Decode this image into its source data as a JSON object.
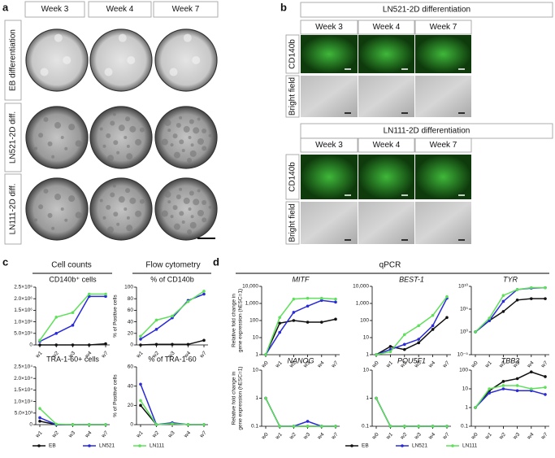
{
  "panels": {
    "a": {
      "label": "a",
      "columns": [
        "Week 3",
        "Week 4",
        "Week 7"
      ],
      "rows": [
        "EB differentiation",
        "LN521-2D diff.",
        "LN111-2D diff."
      ]
    },
    "b": {
      "label": "b",
      "blocks": [
        {
          "title": "LN521-2D differentiation",
          "columns": [
            "Week 3",
            "Week 4",
            "Week 7"
          ],
          "rows": [
            "CD140b",
            "Bright field"
          ]
        },
        {
          "title": "LN111-2D differentiation",
          "columns": [
            "Week 3",
            "Week 4",
            "Week 7"
          ],
          "rows": [
            "CD140b",
            "Bright field"
          ]
        }
      ]
    },
    "c": {
      "label": "c",
      "headers": [
        "Cell counts",
        "Flow cytometry"
      ]
    },
    "d": {
      "label": "d",
      "header": "qPCR"
    }
  },
  "chart_data": [
    {
      "type": "line",
      "title": "CD140b⁺ cells",
      "categories": [
        "w1",
        "w2",
        "w3",
        "w4",
        "w7"
      ],
      "ylim": [
        0,
        2500000
      ],
      "yticks": [
        0,
        {
          "value": 500000,
          "label": "5.0×10⁵"
        },
        {
          "value": 1000000,
          "label": "1.0×10⁶"
        },
        {
          "value": 1500000,
          "label": "1.5×10⁶"
        },
        {
          "value": 2000000,
          "label": "2.0×10⁶"
        },
        {
          "value": 2500000,
          "label": "2.5×10⁶"
        }
      ],
      "series": [
        {
          "name": "EB",
          "color": "#111111",
          "values": [
            0,
            0,
            0,
            0,
            50000
          ]
        },
        {
          "name": "LN521",
          "color": "#2a2ad8",
          "values": [
            150000,
            500000,
            850000,
            2100000,
            2100000
          ]
        },
        {
          "name": "LN111",
          "color": "#5fe05a",
          "values": [
            200000,
            1200000,
            1400000,
            2200000,
            2200000
          ]
        }
      ]
    },
    {
      "type": "line",
      "title": "% of CD140b",
      "ylabel": "% of Positive cells",
      "categories": [
        "w1",
        "w2",
        "w3",
        "w4",
        "w7"
      ],
      "ylim": [
        0,
        100
      ],
      "yticks": [
        0,
        20,
        40,
        60,
        80,
        100
      ],
      "series": [
        {
          "name": "EB",
          "color": "#111111",
          "values": [
            0,
            1,
            1,
            1,
            8
          ]
        },
        {
          "name": "LN521",
          "color": "#2a2ad8",
          "values": [
            10,
            27,
            47,
            77,
            88
          ]
        },
        {
          "name": "LN111",
          "color": "#5fe05a",
          "values": [
            15,
            43,
            50,
            75,
            93
          ]
        }
      ]
    },
    {
      "type": "line",
      "title": "TRA-1-60+ cells",
      "categories": [
        "w1",
        "w2",
        "w3",
        "w4",
        "w7"
      ],
      "ylim": [
        0,
        25000
      ],
      "yticks": [
        0,
        {
          "value": 5000,
          "label": "5.0×10³"
        },
        {
          "value": 10000,
          "label": "1.0×10⁴"
        },
        {
          "value": 15000,
          "label": "1.5×10⁴"
        },
        {
          "value": 20000,
          "label": "2.0×10⁴"
        },
        {
          "value": 25000,
          "label": "2.5×10⁴"
        }
      ],
      "series": [
        {
          "name": "EB",
          "color": "#111111",
          "values": [
            1500,
            0,
            0,
            0,
            0
          ]
        },
        {
          "name": "LN521",
          "color": "#2a2ad8",
          "values": [
            3000,
            0,
            0,
            0,
            0
          ]
        },
        {
          "name": "LN111",
          "color": "#5fe05a",
          "values": [
            7000,
            200,
            0,
            0,
            0
          ]
        }
      ]
    },
    {
      "type": "line",
      "title": "% of TRA-1-60",
      "ylabel": "% of Positive cells",
      "categories": [
        "w1",
        "w2",
        "w3",
        "w4",
        "w7"
      ],
      "ylim": [
        0,
        60
      ],
      "yticks": [
        0,
        20,
        40,
        60
      ],
      "series": [
        {
          "name": "EB",
          "color": "#111111",
          "values": [
            20,
            0,
            1,
            0,
            0
          ]
        },
        {
          "name": "LN521",
          "color": "#2a2ad8",
          "values": [
            42,
            0,
            2,
            0,
            0
          ]
        },
        {
          "name": "LN111",
          "color": "#5fe05a",
          "values": [
            25,
            0,
            1,
            0,
            0
          ]
        }
      ]
    },
    {
      "type": "line",
      "title": "MITF",
      "title_italic": true,
      "log": true,
      "ylabel_lines": [
        "Relative fold change in",
        "gene expression (hESC=1)"
      ],
      "categories": [
        "w0",
        "w1",
        "w2",
        "w3",
        "w4",
        "w7"
      ],
      "ylim": [
        1,
        10000
      ],
      "yticks": [
        1,
        10,
        100,
        {
          "value": 1000,
          "label": "1,000"
        },
        {
          "value": 10000,
          "label": "10,000"
        }
      ],
      "series": [
        {
          "name": "EB",
          "color": "#111111",
          "values": [
            1,
            70,
            100,
            80,
            80,
            120
          ]
        },
        {
          "name": "LN521",
          "color": "#2a2ad8",
          "values": [
            1,
            20,
            300,
            700,
            1500,
            1200
          ]
        },
        {
          "name": "LN111",
          "color": "#5fe05a",
          "values": [
            1,
            150,
            1800,
            2000,
            2000,
            1800
          ]
        }
      ]
    },
    {
      "type": "line",
      "title": "BEST-1",
      "title_italic": true,
      "log": true,
      "categories": [
        "w0",
        "w1",
        "w2",
        "w3",
        "w4",
        "w7"
      ],
      "ylim": [
        1,
        10000
      ],
      "yticks": [
        1,
        10,
        100,
        {
          "value": 1000,
          "label": "1,000"
        },
        {
          "value": 10000,
          "label": "10,000"
        }
      ],
      "series": [
        {
          "name": "EB",
          "color": "#111111",
          "values": [
            1,
            3,
            2,
            5,
            30,
            150
          ]
        },
        {
          "name": "LN521",
          "color": "#2a2ad8",
          "values": [
            1,
            2,
            4,
            8,
            50,
            2000
          ]
        },
        {
          "name": "LN111",
          "color": "#5fe05a",
          "values": [
            1,
            1.5,
            15,
            50,
            200,
            2500
          ]
        }
      ]
    },
    {
      "type": "line",
      "title": "TYR",
      "title_italic": true,
      "log": true,
      "categories": [
        "w0",
        "w1",
        "w2",
        "w3",
        "w4",
        "w7"
      ],
      "ylim": [
        1e-05,
        10000000000
      ],
      "yticks": [
        {
          "value": 1e-05,
          "label": "10⁻⁵"
        },
        {
          "value": 1,
          "label": "10⁰"
        },
        {
          "value": 100000,
          "label": "10⁵"
        },
        {
          "value": 10000000000,
          "label": "10¹⁰"
        }
      ],
      "series": [
        {
          "name": "EB",
          "color": "#111111",
          "values": [
            1,
            300,
            30000,
            10000000,
            20000000,
            20000000
          ]
        },
        {
          "name": "LN521",
          "color": "#2a2ad8",
          "values": [
            1,
            300,
            5000000,
            2000000000,
            4000000000,
            5000000000
          ]
        },
        {
          "name": "LN111",
          "color": "#5fe05a",
          "values": [
            1,
            1000,
            100000000,
            2000000000,
            5000000000,
            5000000000
          ]
        }
      ]
    },
    {
      "type": "line",
      "title": "NANOG",
      "title_italic": true,
      "log": true,
      "ylabel_lines": [
        "Relative fold change in",
        "gene expression (hESC=1)"
      ],
      "categories": [
        "w0",
        "w1",
        "w2",
        "w3",
        "w4",
        "w7"
      ],
      "ylim": [
        0.1,
        10
      ],
      "yticks": [
        0.1,
        1,
        10
      ],
      "series": [
        {
          "name": "EB",
          "color": "#111111",
          "values": [
            1,
            0.1,
            0.1,
            0.1,
            0.1,
            0.1
          ]
        },
        {
          "name": "LN521",
          "color": "#2a2ad8",
          "values": [
            1,
            0.1,
            0.1,
            0.15,
            0.1,
            0.1
          ]
        },
        {
          "name": "LN111",
          "color": "#5fe05a",
          "values": [
            1,
            0.1,
            0.1,
            0.1,
            0.1,
            0.1
          ]
        }
      ]
    },
    {
      "type": "line",
      "title": "POU5F1",
      "title_italic": true,
      "log": true,
      "categories": [
        "w0",
        "w1",
        "w2",
        "w3",
        "w4",
        "w7"
      ],
      "ylim": [
        0.1,
        10
      ],
      "yticks": [
        0.1,
        1,
        10
      ],
      "series": [
        {
          "name": "EB",
          "color": "#111111",
          "values": [
            1,
            0.1,
            0.1,
            0.1,
            0.1,
            0.1
          ]
        },
        {
          "name": "LN521",
          "color": "#2a2ad8",
          "values": [
            1,
            0.1,
            0.1,
            0.1,
            0.1,
            0.1
          ]
        },
        {
          "name": "LN111",
          "color": "#5fe05a",
          "values": [
            1,
            0.1,
            0.1,
            0.1,
            0.1,
            0.1
          ]
        }
      ]
    },
    {
      "type": "line",
      "title": "TBB3",
      "title_italic": true,
      "log": true,
      "categories": [
        "w0",
        "w1",
        "w2",
        "w3",
        "w4",
        "w7"
      ],
      "ylim": [
        0.1,
        100
      ],
      "yticks": [
        0.1,
        1,
        10,
        100
      ],
      "series": [
        {
          "name": "EB",
          "color": "#111111",
          "values": [
            1,
            8,
            25,
            35,
            80,
            45
          ]
        },
        {
          "name": "LN521",
          "color": "#2a2ad8",
          "values": [
            1,
            6,
            10,
            8,
            8,
            5
          ]
        },
        {
          "name": "LN111",
          "color": "#5fe05a",
          "values": [
            1,
            10,
            15,
            15,
            10,
            12
          ]
        }
      ]
    }
  ]
}
